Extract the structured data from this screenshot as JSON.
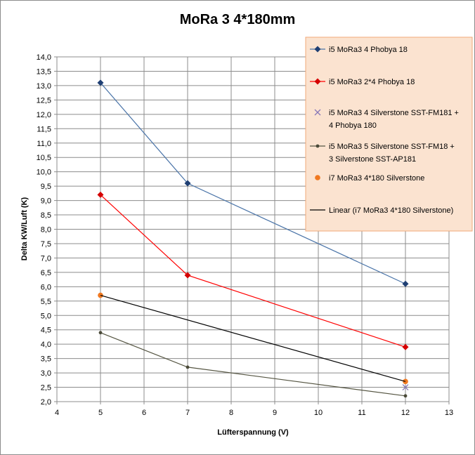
{
  "chart_data": {
    "type": "line",
    "title": "MoRa 3  4*180mm",
    "xlabel": "Lüfterspannung (V)",
    "ylabel": "Delta KW/Luft (K)",
    "xlim": [
      4,
      13
    ],
    "ylim": [
      2.0,
      14.0
    ],
    "x_ticks": [
      "4",
      "5",
      "6",
      "7",
      "8",
      "9",
      "10",
      "11",
      "12",
      "13"
    ],
    "y_ticks": [
      "2,0",
      "2,5",
      "3,0",
      "3,5",
      "4,0",
      "4,5",
      "5,0",
      "5,5",
      "6,0",
      "6,5",
      "7,0",
      "7,5",
      "8,0",
      "8,5",
      "9,0",
      "9,5",
      "10,0",
      "10,5",
      "11,0",
      "11,5",
      "12,0",
      "12,5",
      "13,0",
      "13,5",
      "14,0"
    ],
    "grid": true,
    "legend_position": "top-right",
    "legend_background": "#fbe3d0",
    "legend_border": "#f0a878",
    "series": [
      {
        "name": "i5 MoRa3 4 Phobya 18",
        "x": [
          5,
          7,
          12
        ],
        "y": [
          13.1,
          9.6,
          6.1
        ],
        "color": "#4a74a8",
        "marker": "diamond",
        "marker_color": "#1f3f73",
        "line": true
      },
      {
        "name": "i5 MoRa3 2*4 Phobya 18",
        "x": [
          5,
          7,
          12
        ],
        "y": [
          9.2,
          6.4,
          3.9
        ],
        "color": "#ff0000",
        "marker": "diamond",
        "marker_color": "#d40000",
        "line": true
      },
      {
        "name": "i5 MoRa3 4 Silverstone SST-FM181 + 4 Phobya 180",
        "x": [
          12
        ],
        "y": [
          2.5
        ],
        "color": "#8878b8",
        "marker": "x",
        "marker_color": "#8878b8",
        "line": false
      },
      {
        "name": "i5 MoRa3 5 Silverstone  SST-FM18 + 3 Silverstone SST-AP181",
        "x": [
          5,
          7,
          12
        ],
        "y": [
          4.4,
          3.2,
          2.2
        ],
        "color": "#555542",
        "marker": "dot",
        "marker_color": "#4a4a38",
        "line": true
      },
      {
        "name": "i7 MoRa3 4*180 Silverstone",
        "x": [
          5,
          12
        ],
        "y": [
          5.7,
          2.7
        ],
        "color": "#f07820",
        "marker": "circle",
        "marker_color": "#f07820",
        "line": false
      },
      {
        "name": "Linear (i7 MoRa3 4*180 Silverstone)",
        "x": [
          5,
          12
        ],
        "y": [
          5.7,
          2.7
        ],
        "color": "#000000",
        "marker": "none",
        "line": true
      }
    ]
  }
}
